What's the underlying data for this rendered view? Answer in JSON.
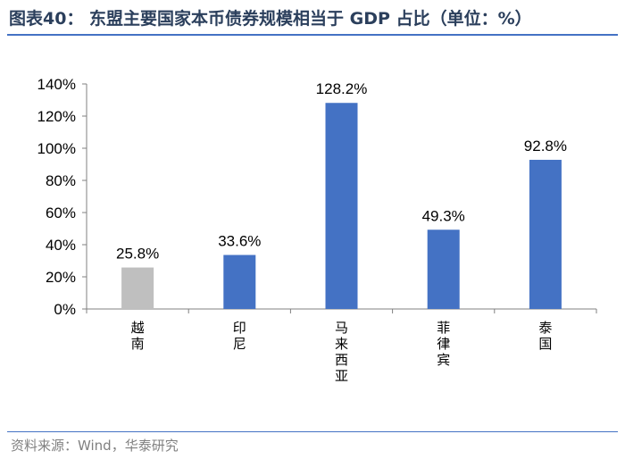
{
  "figure": {
    "title": "图表40： 东盟主要国家本币债券规模相当于 GDP 占比（单位：%）",
    "source": "资料来源：Wind，华泰研究"
  },
  "chart_data": {
    "type": "bar",
    "categories": [
      "越南",
      "印尼",
      "马来西亚",
      "菲律宾",
      "泰国"
    ],
    "values": [
      25.8,
      33.6,
      128.2,
      49.3,
      92.8
    ],
    "data_labels": [
      "25.8%",
      "33.6%",
      "128.2%",
      "49.3%",
      "92.8%"
    ],
    "bar_colors": [
      "#bfbfbf",
      "#4472c4",
      "#4472c4",
      "#4472c4",
      "#4472c4"
    ],
    "y_ticks": [
      0,
      20,
      40,
      60,
      80,
      100,
      120,
      140
    ],
    "y_tick_labels": [
      "0%",
      "20%",
      "40%",
      "60%",
      "80%",
      "100%",
      "120%",
      "140%"
    ],
    "ylim": [
      0,
      140
    ],
    "grid": false,
    "legend": "none"
  }
}
